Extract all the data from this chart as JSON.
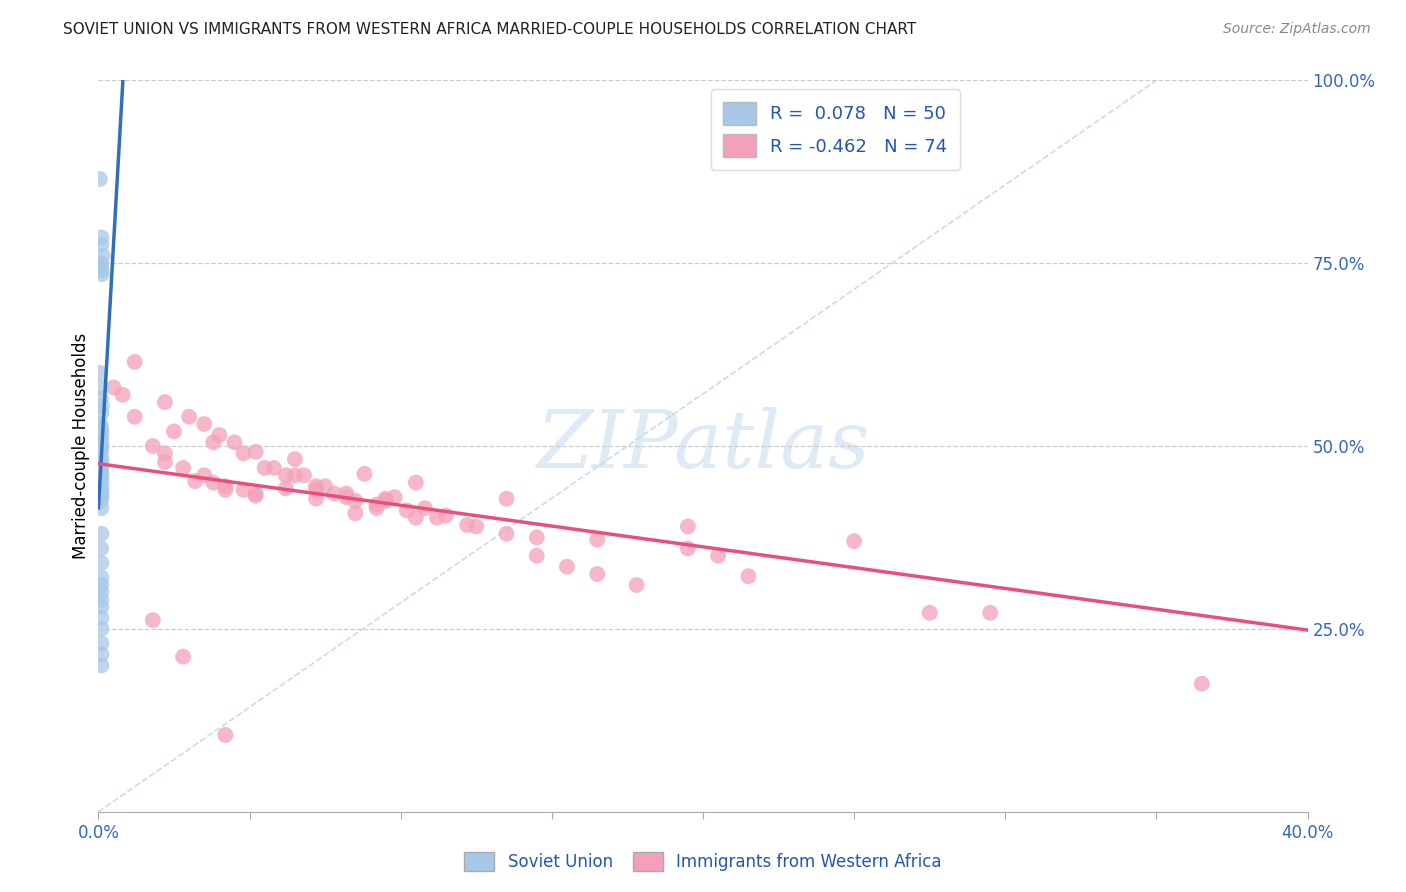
{
  "title": "SOVIET UNION VS IMMIGRANTS FROM WESTERN AFRICA MARRIED-COUPLE HOUSEHOLDS CORRELATION CHART",
  "source": "Source: ZipAtlas.com",
  "ylabel": "Married-couple Households",
  "legend_label1": "Soviet Union",
  "legend_label2": "Immigrants from Western Africa",
  "R1": 0.078,
  "N1": 50,
  "R2": -0.462,
  "N2": 74,
  "color_blue": "#a8c8e8",
  "color_pink": "#f4a0b8",
  "color_blue_line": "#3070b8",
  "color_pink_line": "#e8507a",
  "color_diagonal": "#b8d4e8",
  "background": "#ffffff",
  "xlim": [
    0,
    0.4
  ],
  "ylim": [
    0,
    1.0
  ],
  "blue_scatter_x": [
    0.0005,
    0.001,
    0.001,
    0.0015,
    0.001,
    0.0008,
    0.001,
    0.0012,
    0.0005,
    0.001,
    0.0008,
    0.0012,
    0.001,
    0.0006,
    0.001,
    0.0009,
    0.001,
    0.0007,
    0.001,
    0.001,
    0.0008,
    0.001,
    0.0005,
    0.001,
    0.001,
    0.0009,
    0.001,
    0.0008,
    0.001,
    0.001,
    0.0007,
    0.001,
    0.0009,
    0.001,
    0.001,
    0.0008,
    0.001,
    0.001,
    0.0009,
    0.001,
    0.001,
    0.001,
    0.001,
    0.001,
    0.001,
    0.001,
    0.001,
    0.001,
    0.001,
    0.001
  ],
  "blue_scatter_y": [
    0.865,
    0.785,
    0.775,
    0.76,
    0.75,
    0.745,
    0.74,
    0.735,
    0.6,
    0.58,
    0.565,
    0.555,
    0.545,
    0.53,
    0.525,
    0.52,
    0.515,
    0.51,
    0.505,
    0.5,
    0.498,
    0.495,
    0.49,
    0.485,
    0.48,
    0.475,
    0.47,
    0.465,
    0.46,
    0.455,
    0.452,
    0.445,
    0.44,
    0.435,
    0.43,
    0.425,
    0.415,
    0.38,
    0.36,
    0.34,
    0.32,
    0.31,
    0.3,
    0.29,
    0.28,
    0.265,
    0.25,
    0.23,
    0.215,
    0.2
  ],
  "pink_scatter_x": [
    0.005,
    0.012,
    0.018,
    0.022,
    0.028,
    0.035,
    0.038,
    0.042,
    0.048,
    0.052,
    0.03,
    0.04,
    0.055,
    0.065,
    0.072,
    0.078,
    0.085,
    0.092,
    0.098,
    0.105,
    0.045,
    0.058,
    0.068,
    0.075,
    0.082,
    0.095,
    0.108,
    0.115,
    0.125,
    0.135,
    0.025,
    0.038,
    0.048,
    0.062,
    0.072,
    0.082,
    0.092,
    0.102,
    0.112,
    0.122,
    0.145,
    0.155,
    0.165,
    0.178,
    0.145,
    0.195,
    0.205,
    0.215,
    0.25,
    0.275,
    0.022,
    0.032,
    0.042,
    0.052,
    0.062,
    0.072,
    0.085,
    0.095,
    0.135,
    0.195,
    0.012,
    0.022,
    0.035,
    0.052,
    0.065,
    0.088,
    0.105,
    0.165,
    0.295,
    0.365,
    0.008,
    0.018,
    0.028,
    0.042
  ],
  "pink_scatter_y": [
    0.58,
    0.54,
    0.5,
    0.49,
    0.47,
    0.46,
    0.45,
    0.445,
    0.44,
    0.435,
    0.54,
    0.515,
    0.47,
    0.46,
    0.44,
    0.435,
    0.425,
    0.415,
    0.43,
    0.45,
    0.505,
    0.47,
    0.46,
    0.445,
    0.435,
    0.425,
    0.415,
    0.405,
    0.39,
    0.38,
    0.52,
    0.505,
    0.49,
    0.46,
    0.445,
    0.43,
    0.42,
    0.412,
    0.402,
    0.392,
    0.35,
    0.335,
    0.325,
    0.31,
    0.375,
    0.36,
    0.35,
    0.322,
    0.37,
    0.272,
    0.478,
    0.452,
    0.44,
    0.432,
    0.442,
    0.428,
    0.408,
    0.428,
    0.428,
    0.39,
    0.615,
    0.56,
    0.53,
    0.492,
    0.482,
    0.462,
    0.402,
    0.372,
    0.272,
    0.175,
    0.57,
    0.262,
    0.212,
    0.105
  ]
}
